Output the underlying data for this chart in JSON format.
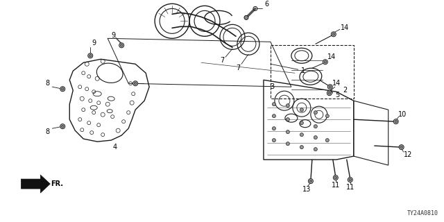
{
  "bg_color": "#ffffff",
  "line_color": "#1a1a1a",
  "label_color": "#000000",
  "diagram_code": "TY24A0810",
  "figsize": [
    6.4,
    3.2
  ],
  "dpi": 100
}
